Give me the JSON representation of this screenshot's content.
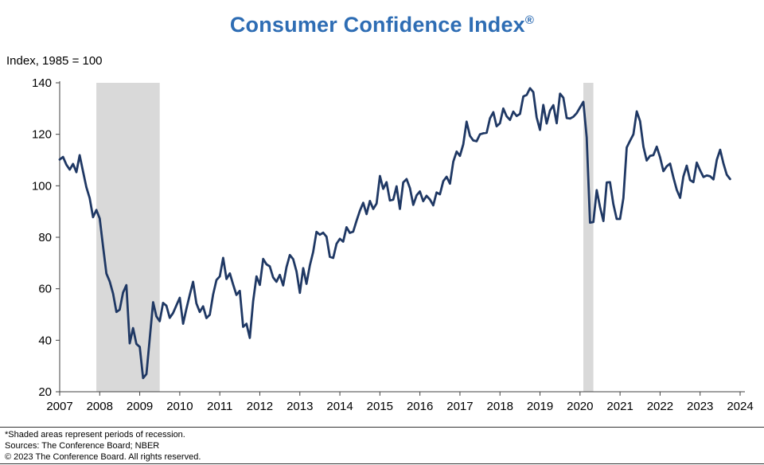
{
  "title": "Consumer Confidence Index",
  "title_registered": "®",
  "axis_note": "Index, 1985 = 100",
  "footer": {
    "note": "*Shaded areas represent periods of recession.",
    "sources": "Sources: The Conference Board; NBER",
    "copyright": "© 2023 The Conference Board. All rights reserved."
  },
  "colors": {
    "title": "#2E6DB4",
    "line": "#1F3864",
    "recession": "#D9D9D9",
    "axis": "#404040",
    "tick_text": "#000000"
  },
  "chart_data": {
    "type": "line",
    "title": "Consumer Confidence Index®",
    "ylabel": "Index, 1985 = 100",
    "legend": "none",
    "grid": false,
    "x_start_year": 2007,
    "x_step": "month",
    "xlim": [
      2007,
      2024
    ],
    "ylim": [
      20,
      140
    ],
    "xticks": [
      2007,
      2008,
      2009,
      2010,
      2011,
      2012,
      2013,
      2014,
      2015,
      2016,
      2017,
      2018,
      2019,
      2020,
      2021,
      2022,
      2023,
      2024
    ],
    "yticks": [
      20,
      40,
      60,
      80,
      100,
      120,
      140
    ],
    "recessions": [
      {
        "start": 2007.917,
        "end": 2009.5
      },
      {
        "start": 2020.083,
        "end": 2020.333
      }
    ],
    "series": [
      {
        "name": "Consumer Confidence Index (1985 = 100)",
        "values": [
          110.2,
          111.2,
          108.2,
          106.3,
          108.5,
          105.3,
          111.9,
          105.6,
          99.5,
          95.2,
          87.8,
          90.6,
          87.3,
          76.4,
          65.9,
          62.8,
          58.1,
          51.0,
          51.9,
          58.5,
          61.4,
          38.8,
          44.7,
          38.6,
          37.4,
          25.3,
          26.9,
          40.8,
          54.8,
          49.3,
          47.4,
          54.5,
          53.4,
          48.7,
          50.6,
          53.6,
          56.5,
          46.4,
          52.3,
          57.7,
          62.7,
          54.3,
          51.0,
          53.2,
          48.6,
          49.9,
          57.8,
          63.4,
          64.8,
          72.0,
          63.8,
          66.0,
          61.7,
          57.6,
          59.2,
          45.2,
          46.4,
          40.9,
          55.2,
          64.8,
          61.5,
          71.6,
          69.5,
          68.7,
          64.4,
          62.7,
          65.4,
          61.3,
          68.4,
          73.1,
          71.5,
          66.7,
          58.4,
          68.0,
          61.9,
          69.0,
          74.3,
          82.1,
          81.0,
          81.8,
          80.2,
          72.4,
          72.0,
          77.5,
          79.4,
          78.3,
          83.9,
          81.7,
          82.2,
          86.4,
          90.3,
          93.4,
          89.0,
          94.1,
          91.0,
          93.1,
          103.8,
          98.8,
          101.4,
          94.3,
          94.6,
          99.8,
          91.0,
          101.3,
          102.6,
          99.1,
          92.6,
          96.3,
          97.8,
          94.0,
          96.1,
          94.7,
          92.4,
          97.4,
          96.7,
          101.8,
          103.5,
          100.8,
          109.4,
          113.3,
          111.6,
          116.1,
          124.9,
          119.4,
          117.6,
          117.3,
          120.0,
          120.4,
          120.6,
          126.2,
          128.6,
          123.1,
          124.3,
          130.0,
          127.0,
          125.6,
          128.8,
          127.1,
          127.9,
          134.7,
          135.3,
          137.9,
          136.4,
          126.6,
          121.7,
          131.4,
          124.2,
          129.2,
          131.3,
          124.3,
          135.8,
          134.2,
          126.3,
          126.1,
          126.8,
          128.2,
          130.4,
          132.6,
          118.8,
          85.7,
          85.9,
          98.3,
          91.7,
          86.3,
          101.3,
          101.4,
          92.9,
          87.1,
          87.1,
          95.2,
          114.9,
          117.5,
          120.0,
          128.9,
          125.1,
          115.2,
          109.8,
          111.6,
          111.9,
          115.2,
          111.1,
          105.7,
          107.6,
          108.6,
          103.2,
          98.4,
          95.3,
          103.6,
          107.8,
          102.2,
          101.4,
          109.0,
          106.0,
          103.4,
          104.0,
          103.7,
          102.5,
          110.1,
          114.0,
          108.7,
          104.3,
          102.6
        ]
      }
    ]
  }
}
